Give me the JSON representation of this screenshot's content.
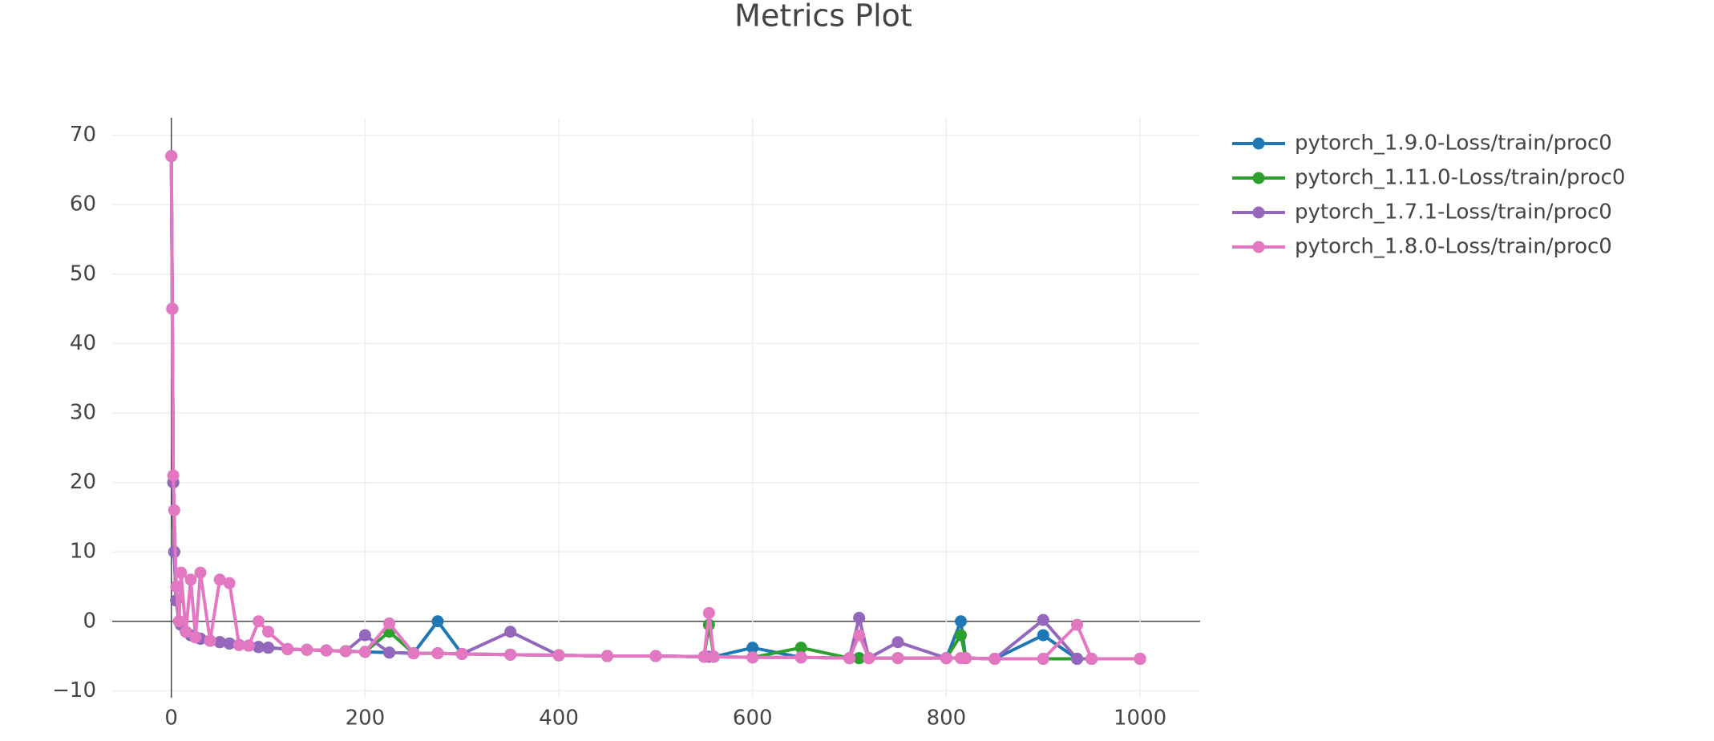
{
  "chart_data": {
    "type": "line",
    "title": "Metrics Plot",
    "x": [
      0,
      1,
      2,
      3,
      5,
      8,
      10,
      15,
      20,
      25,
      30,
      40,
      50,
      60,
      70,
      80,
      90,
      100,
      120,
      140,
      160,
      180,
      200,
      225,
      250,
      275,
      300,
      350,
      400,
      450,
      500,
      550,
      555,
      560,
      600,
      650,
      700,
      710,
      720,
      750,
      800,
      815,
      820,
      850,
      900,
      935,
      950,
      1000
    ],
    "series": [
      {
        "name": "pytorch_1.9.0-Loss/train/proc0",
        "color": "#1f77b4",
        "values": [
          67,
          45,
          20,
          10,
          3,
          0,
          -0.5,
          -1.5,
          -2,
          -2.3,
          -2.5,
          -2.8,
          -3,
          -3.2,
          -3.4,
          -3.5,
          -3.7,
          -3.8,
          -4,
          -4.1,
          -4.2,
          -4.3,
          -4.4,
          -4.5,
          -4.6,
          0,
          -4.7,
          -4.8,
          -4.9,
          -5,
          -5,
          -5.1,
          -5.1,
          -5.1,
          -3.8,
          -5.2,
          -5.3,
          -5.3,
          -5.3,
          -5.3,
          -5.3,
          0,
          -5.3,
          -5.4,
          -2,
          -5.4,
          -5.4,
          -5.4
        ]
      },
      {
        "name": "pytorch_1.11.0-Loss/train/proc0",
        "color": "#2ca02c",
        "values": [
          67,
          45,
          20,
          10,
          3,
          0,
          -0.5,
          -1.5,
          -2,
          -2.3,
          -2.5,
          -2.8,
          -3,
          -3.2,
          -3.4,
          -3.5,
          -3.7,
          -3.8,
          -4,
          -4.1,
          -4.2,
          -4.3,
          -4.4,
          -1.5,
          -4.6,
          -4.6,
          -4.7,
          -4.8,
          -4.9,
          -5,
          -5,
          -5.1,
          -0.5,
          -5.1,
          -5.2,
          -3.8,
          -5.3,
          -5.3,
          -5.3,
          -5.3,
          -5.3,
          -2,
          -5.3,
          -5.4,
          -5.4,
          -5.4,
          -5.4,
          -5.4
        ]
      },
      {
        "name": "pytorch_1.7.1-Loss/train/proc0",
        "color": "#9467bd",
        "values": [
          67,
          45,
          20,
          10,
          3,
          0,
          -0.5,
          -1.5,
          -2,
          -2.3,
          -2.5,
          -2.8,
          -3,
          -3.2,
          -3.4,
          -3.5,
          -3.7,
          -3.8,
          -4,
          -4.1,
          -4.2,
          -4.3,
          -2,
          -4.5,
          -4.6,
          -4.6,
          -4.7,
          -1.5,
          -4.9,
          -5,
          -5,
          -5.1,
          -5.1,
          -5.1,
          -5.2,
          -5.2,
          -5.3,
          0.5,
          -5.3,
          -3,
          -5.3,
          -5.3,
          -5.3,
          -5.4,
          0.2,
          -5.4,
          -5.4,
          -5.4
        ]
      },
      {
        "name": "pytorch_1.8.0-Loss/train/proc0",
        "color": "#e377c2",
        "values": [
          67,
          45,
          21,
          16,
          5,
          0,
          7,
          -1.5,
          6,
          -2.3,
          7,
          -2.8,
          6,
          5.5,
          -3.4,
          -3.5,
          0,
          -1.5,
          -4,
          -4.1,
          -4.2,
          -4.3,
          -4.4,
          -0.3,
          -4.6,
          -4.6,
          -4.7,
          -4.8,
          -4.9,
          -5,
          -5,
          -5.1,
          1.2,
          -5.1,
          -5.2,
          -5.2,
          -5.3,
          -2,
          -5.3,
          -5.3,
          -5.3,
          -5.3,
          -5.3,
          -5.4,
          -5.4,
          -0.5,
          -5.4,
          -5.4
        ]
      }
    ],
    "xlim": [
      -61,
      1062
    ],
    "ylim": [
      -11,
      72.5
    ],
    "xticks": [
      0,
      200,
      400,
      600,
      800,
      1000
    ],
    "yticks": [
      {
        "value": -10,
        "label": "−10"
      },
      0,
      10,
      20,
      30,
      40,
      50,
      60,
      70
    ],
    "grid": true,
    "legend": "right"
  }
}
